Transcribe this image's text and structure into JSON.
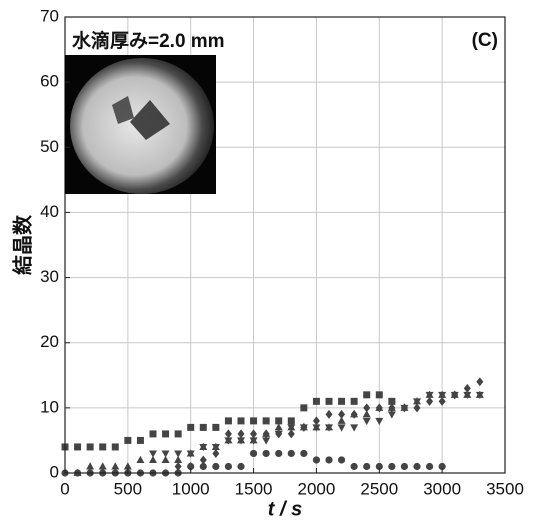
{
  "chart_data": {
    "type": "scatter",
    "title": "水滴厚み=2.0 mm",
    "annotation": "(C)",
    "x_label": "t / s",
    "y_label": "結晶数",
    "xlim": [
      0,
      3500
    ],
    "xticks": [
      0,
      500,
      1000,
      1500,
      2000,
      2500,
      3000,
      3500
    ],
    "ylim": [
      0,
      70
    ],
    "yticks": [
      0,
      10,
      20,
      30,
      40,
      50,
      60,
      70
    ],
    "grid": true,
    "series": [
      {
        "marker": "square",
        "color": "#444444",
        "x": [
          0,
          100,
          200,
          300,
          400,
          500,
          600,
          700,
          800,
          900,
          1000,
          1100,
          1200,
          1300,
          1400,
          1500,
          1600,
          1700,
          1800,
          1900,
          2000,
          2100,
          2200,
          2300,
          2400,
          2500,
          2600
        ],
        "values": [
          4,
          4,
          4,
          4,
          4,
          5,
          5,
          6,
          6,
          6,
          7,
          7,
          7,
          8,
          8,
          8,
          8,
          8,
          8,
          10,
          11,
          11,
          11,
          11,
          12,
          12,
          11
        ]
      },
      {
        "marker": "circle",
        "color": "#444444",
        "x": [
          0,
          100,
          200,
          300,
          400,
          500,
          600,
          700,
          800,
          900,
          1000,
          1100,
          1200,
          1300,
          1400,
          1500,
          1600,
          1700,
          1800,
          1900,
          2000,
          2100,
          2200,
          2300,
          2400,
          2500,
          2600,
          2700,
          2800,
          2900,
          3000
        ],
        "values": [
          0,
          0,
          0,
          0,
          0,
          0,
          0,
          0,
          0,
          0,
          1,
          1,
          1,
          1,
          1,
          3,
          3,
          3,
          3,
          3,
          2,
          2,
          2,
          1,
          1,
          1,
          1,
          1,
          1,
          1,
          1
        ]
      },
      {
        "marker": "triangle-up",
        "color": "#444444",
        "x": [
          100,
          200,
          300,
          400,
          500,
          600,
          700,
          800,
          900,
          1000,
          1100,
          1200,
          1300,
          1400,
          1500,
          1600,
          1700,
          1800,
          1900,
          2000,
          2100,
          2200,
          2300,
          2400,
          2500,
          2600,
          2700,
          2800,
          2900,
          3000,
          3100,
          3200,
          3300
        ],
        "values": [
          0,
          1,
          1,
          1,
          1,
          2,
          2,
          2,
          2,
          3,
          4,
          4,
          5,
          5,
          5,
          6,
          7,
          7,
          7,
          7,
          7,
          8,
          9,
          9,
          10,
          10,
          10,
          11,
          12,
          12,
          12,
          12,
          12
        ]
      },
      {
        "marker": "triangle-down",
        "color": "#444444",
        "x": [
          700,
          800,
          900,
          1000,
          1100,
          1200,
          1300,
          1400,
          1500,
          1600,
          1700,
          1800,
          1900,
          2000,
          2100,
          2200,
          2300,
          2400,
          2500,
          2600,
          2700,
          2800,
          2900,
          3000,
          3100,
          3200,
          3300
        ],
        "values": [
          3,
          3,
          3,
          3,
          4,
          4,
          5,
          5,
          5,
          5,
          6,
          7,
          7,
          7,
          7,
          7,
          7,
          8,
          8,
          9,
          10,
          11,
          12,
          12,
          12,
          12,
          12
        ]
      },
      {
        "marker": "diamond",
        "color": "#444444",
        "x": [
          900,
          1000,
          1100,
          1200,
          1300,
          1400,
          1500,
          1600,
          1700,
          1800,
          1900,
          2000,
          2100,
          2200,
          2300,
          2400,
          2500,
          2600,
          2700,
          2800,
          2900,
          3000,
          3100,
          3200,
          3300
        ],
        "values": [
          1,
          1,
          2,
          3,
          6,
          6,
          6,
          6,
          6,
          6,
          7,
          8,
          9,
          9,
          9,
          10,
          10,
          10,
          10,
          10,
          11,
          11,
          12,
          13,
          14
        ]
      }
    ]
  }
}
